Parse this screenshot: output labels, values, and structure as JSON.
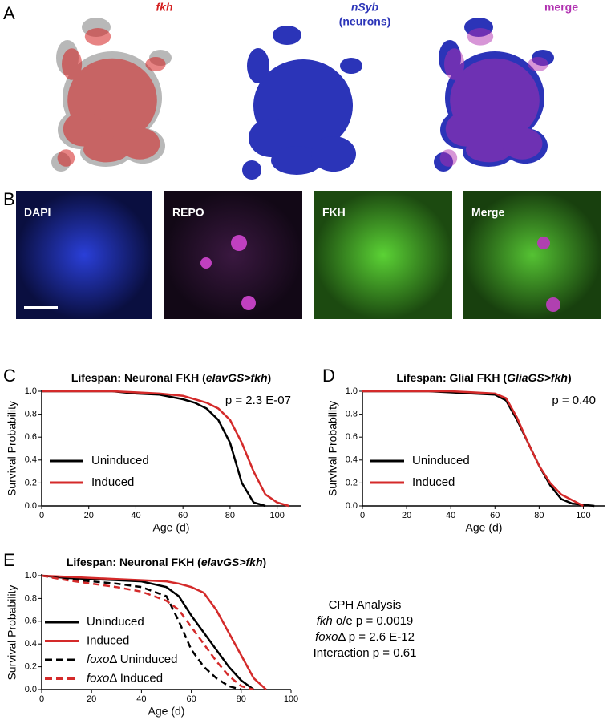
{
  "panel_labels": [
    "A",
    "B",
    "C",
    "D",
    "E"
  ],
  "tsne_titles": [
    {
      "parts": [
        {
          "text": "fkh",
          "italic": true
        }
      ],
      "color": "#d42020"
    },
    {
      "parts": [
        {
          "text": "nSyb",
          "italic": true
        },
        {
          "text": "(neurons)"
        }
      ],
      "color": "#2b34b8"
    },
    {
      "parts": [
        {
          "text": "merge"
        }
      ],
      "color": "#b030b0"
    }
  ],
  "image_labels": [
    "DAPI",
    "REPO",
    "FKH",
    "Merge"
  ],
  "chart_data": [
    {
      "type": "line",
      "title_parts": [
        {
          "text": "Lifespan: Neuronal FKH ("
        },
        {
          "text": "elavGS>fkh",
          "italic": true
        },
        {
          "text": ")"
        }
      ],
      "x": [
        0,
        10,
        20,
        30,
        40,
        50,
        60,
        65,
        70,
        75,
        80,
        85,
        90,
        95,
        100,
        105
      ],
      "xlim": [
        0,
        110
      ],
      "xticks": [
        0,
        20,
        40,
        60,
        80,
        100
      ],
      "ylim": [
        0,
        1
      ],
      "yticks": [
        {
          "value": 0,
          "label": "0.0"
        },
        0.2,
        0.4,
        0.6,
        0.8,
        {
          "value": 1,
          "label": "1.0"
        }
      ],
      "xlabel": "Age (d)",
      "ylabel": "Survival Probability",
      "annotation": "p = 2.3 E-07",
      "legend": "lower left",
      "series": [
        {
          "name_parts": [
            {
              "text": "Uninduced"
            }
          ],
          "color": "#000000",
          "values": [
            1,
            1,
            1,
            1,
            0.98,
            0.97,
            0.93,
            0.9,
            0.85,
            0.75,
            0.55,
            0.2,
            0.03,
            0,
            null,
            null
          ]
        },
        {
          "name_parts": [
            {
              "text": "Induced"
            }
          ],
          "color": "#d42a2a",
          "values": [
            1,
            1,
            1,
            1,
            0.99,
            0.98,
            0.96,
            0.93,
            0.9,
            0.85,
            0.75,
            0.55,
            0.3,
            0.1,
            0.03,
            0
          ]
        }
      ]
    },
    {
      "type": "line",
      "title_parts": [
        {
          "text": "Lifespan: Glial FKH ("
        },
        {
          "text": "GliaGS>fkh",
          "italic": true
        },
        {
          "text": ")"
        }
      ],
      "x": [
        0,
        10,
        20,
        30,
        40,
        50,
        60,
        65,
        70,
        75,
        80,
        85,
        90,
        95,
        100,
        105
      ],
      "xlim": [
        0,
        110
      ],
      "xticks": [
        0,
        20,
        40,
        60,
        80,
        100
      ],
      "ylim": [
        0,
        1
      ],
      "yticks": [
        {
          "value": 0,
          "label": "0.0"
        },
        0.2,
        0.4,
        0.6,
        0.8,
        {
          "value": 1,
          "label": "1.0"
        }
      ],
      "xlabel": "Age (d)",
      "ylabel": "Survival Probability",
      "annotation": "p = 0.40",
      "legend": "lower left",
      "series": [
        {
          "name_parts": [
            {
              "text": "Uninduced"
            }
          ],
          "color": "#000000",
          "values": [
            1,
            1,
            1,
            1,
            0.99,
            0.98,
            0.97,
            0.92,
            0.75,
            0.55,
            0.35,
            0.18,
            0.06,
            0.02,
            0.01,
            0
          ]
        },
        {
          "name_parts": [
            {
              "text": "Induced"
            }
          ],
          "color": "#d42a2a",
          "values": [
            1,
            1,
            1,
            1,
            1,
            0.99,
            0.98,
            0.94,
            0.77,
            0.55,
            0.35,
            0.2,
            0.1,
            0.05,
            0,
            null
          ]
        }
      ]
    },
    {
      "type": "line",
      "title_parts": [
        {
          "text": "Lifespan: Neuronal FKH ("
        },
        {
          "text": "elavGS>fkh",
          "italic": true
        },
        {
          "text": ")"
        }
      ],
      "x": [
        0,
        10,
        20,
        30,
        40,
        50,
        55,
        60,
        65,
        70,
        75,
        80,
        85,
        90
      ],
      "xlim": [
        0,
        100
      ],
      "xticks": [
        0,
        20,
        40,
        60,
        80,
        100
      ],
      "ylim": [
        0,
        1
      ],
      "yticks": [
        {
          "value": 0,
          "label": "0.0"
        },
        0.2,
        0.4,
        0.6,
        0.8,
        {
          "value": 1,
          "label": "1.0"
        }
      ],
      "xlabel": "Age (d)",
      "ylabel": "Survival Probability",
      "legend": "lower left",
      "series": [
        {
          "name_parts": [
            {
              "text": "Uninduced"
            }
          ],
          "color": "#000000",
          "dash": false,
          "values": [
            1,
            0.98,
            0.97,
            0.96,
            0.95,
            0.9,
            0.82,
            0.65,
            0.5,
            0.35,
            0.2,
            0.08,
            0,
            null
          ]
        },
        {
          "name_parts": [
            {
              "text": "Induced"
            }
          ],
          "color": "#d42a2a",
          "dash": false,
          "values": [
            1,
            0.99,
            0.98,
            0.97,
            0.96,
            0.95,
            0.93,
            0.9,
            0.85,
            0.7,
            0.5,
            0.3,
            0.1,
            0
          ]
        },
        {
          "name_parts": [
            {
              "text": "foxo",
              "italic": true
            },
            {
              "text": "Δ Uninduced"
            }
          ],
          "color": "#000000",
          "dash": true,
          "values": [
            1,
            0.97,
            0.95,
            0.93,
            0.9,
            0.82,
            0.6,
            0.35,
            0.2,
            0.1,
            0.03,
            0,
            null,
            null
          ]
        },
        {
          "name_parts": [
            {
              "text": "foxo",
              "italic": true
            },
            {
              "text": "Δ Induced"
            }
          ],
          "color": "#d42a2a",
          "dash": true,
          "values": [
            1,
            0.96,
            0.93,
            0.9,
            0.86,
            0.78,
            0.7,
            0.55,
            0.4,
            0.25,
            0.12,
            0.03,
            0,
            null
          ]
        }
      ]
    }
  ],
  "cph_analysis": [
    [
      {
        "text": "CPH Analysis"
      }
    ],
    [
      {
        "text": "fkh",
        "italic": true
      },
      {
        "text": " o/e p = 0.0019"
      }
    ],
    [
      {
        "text": "foxo",
        "italic": true
      },
      {
        "text": "Δ p = 2.6 E-12"
      }
    ],
    [
      {
        "text": "Interaction p = 0.61"
      }
    ]
  ]
}
